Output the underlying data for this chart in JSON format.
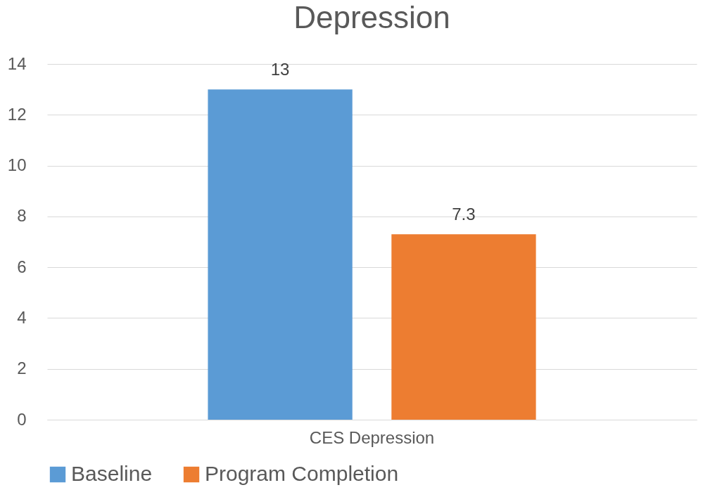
{
  "chart_data": {
    "type": "bar",
    "title": "Depression",
    "categories": [
      "CES Depression"
    ],
    "series": [
      {
        "name": "Baseline",
        "color": "#5b9bd5",
        "values": [
          13
        ]
      },
      {
        "name": "Program Completion",
        "color": "#ed7d31",
        "values": [
          7.3
        ]
      }
    ],
    "ylim": [
      0,
      14
    ],
    "yticks": [
      0,
      2,
      4,
      6,
      8,
      10,
      12,
      14
    ],
    "grid": "y",
    "legend": "bottom",
    "data_labels": true
  }
}
